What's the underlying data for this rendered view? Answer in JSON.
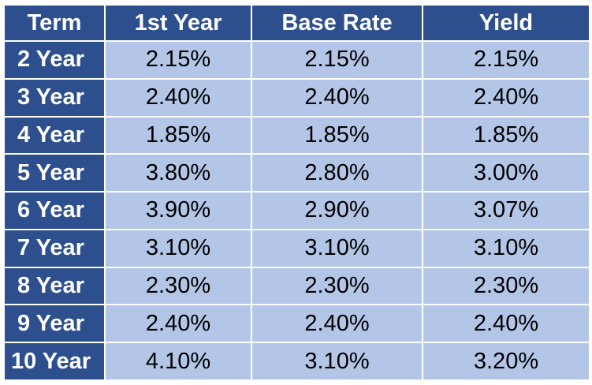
{
  "table": {
    "headers": [
      "Term",
      "1st Year",
      "Base Rate",
      "Yield"
    ],
    "rows": [
      {
        "term": "2 Year",
        "first_year": "2.15%",
        "base_rate": "2.15%",
        "yield": "2.15%"
      },
      {
        "term": "3 Year",
        "first_year": "2.40%",
        "base_rate": "2.40%",
        "yield": "2.40%"
      },
      {
        "term": "4 Year",
        "first_year": "1.85%",
        "base_rate": "1.85%",
        "yield": "1.85%"
      },
      {
        "term": "5 Year",
        "first_year": "3.80%",
        "base_rate": "2.80%",
        "yield": "3.00%"
      },
      {
        "term": "6 Year",
        "first_year": "3.90%",
        "base_rate": "2.90%",
        "yield": "3.07%"
      },
      {
        "term": "7 Year",
        "first_year": "3.10%",
        "base_rate": "3.10%",
        "yield": "3.10%"
      },
      {
        "term": "8 Year",
        "first_year": "2.30%",
        "base_rate": "2.30%",
        "yield": "2.30%"
      },
      {
        "term": "9 Year",
        "first_year": "2.40%",
        "base_rate": "2.40%",
        "yield": "2.40%"
      },
      {
        "term": "10 Year",
        "first_year": "4.10%",
        "base_rate": "3.10%",
        "yield": "3.20%"
      }
    ]
  },
  "colors": {
    "header_bg": "#2e4f8e",
    "cell_bg": "#b4c6e7",
    "header_text": "#ffffff",
    "cell_text": "#000000"
  }
}
